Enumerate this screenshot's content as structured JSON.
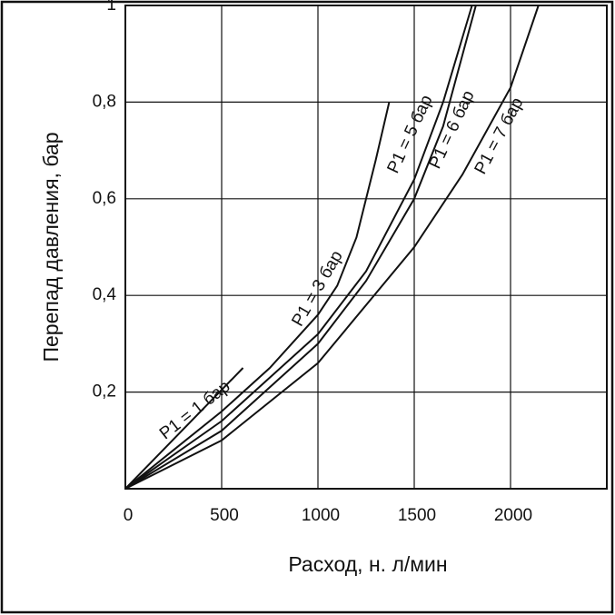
{
  "chart_data": {
    "type": "line",
    "x_label": "Расход, н. л/мин",
    "y_label": "Перепад давления, бар",
    "xlim": [
      0,
      2500
    ],
    "ylim": [
      0,
      1
    ],
    "xticks": [
      0,
      500,
      1000,
      1500,
      2000
    ],
    "yticks": [
      {
        "value": 0.2,
        "label": "0,2"
      },
      {
        "value": 0.4,
        "label": "0,4"
      },
      {
        "value": 0.6,
        "label": "0,6"
      },
      {
        "value": 0.8,
        "label": "0,8"
      },
      1
    ],
    "grid": true,
    "series": [
      {
        "name": "P1 = 1 бар",
        "color": "#111111",
        "x": [
          0,
          611
        ],
        "values": [
          0,
          0.25
        ]
      },
      {
        "name": "P1 = 3 бар",
        "color": "#111111",
        "x": [
          0,
          250,
          500,
          750,
          1000,
          1100,
          1200,
          1250,
          1300,
          1370
        ],
        "values": [
          0,
          0.08,
          0.16,
          0.25,
          0.36,
          0.42,
          0.52,
          0.6,
          0.68,
          0.8
        ]
      },
      {
        "name": "P1 = 5 бар",
        "color": "#111111",
        "x": [
          0,
          500,
          1000,
          1250,
          1500,
          1650,
          1800
        ],
        "values": [
          0,
          0.14,
          0.32,
          0.45,
          0.64,
          0.8,
          1
        ]
      },
      {
        "name": "P1 = 6 бар",
        "color": "#111111",
        "x": [
          0,
          500,
          1000,
          1250,
          1500,
          1650,
          1820
        ],
        "values": [
          0,
          0.12,
          0.3,
          0.43,
          0.6,
          0.75,
          1
        ]
      },
      {
        "name": "P1 = 7 бар",
        "color": "#111111",
        "x": [
          0,
          500,
          1000,
          1500,
          1750,
          2000,
          2145
        ],
        "values": [
          0,
          0.1,
          0.26,
          0.5,
          0.65,
          0.83,
          1
        ]
      }
    ]
  }
}
